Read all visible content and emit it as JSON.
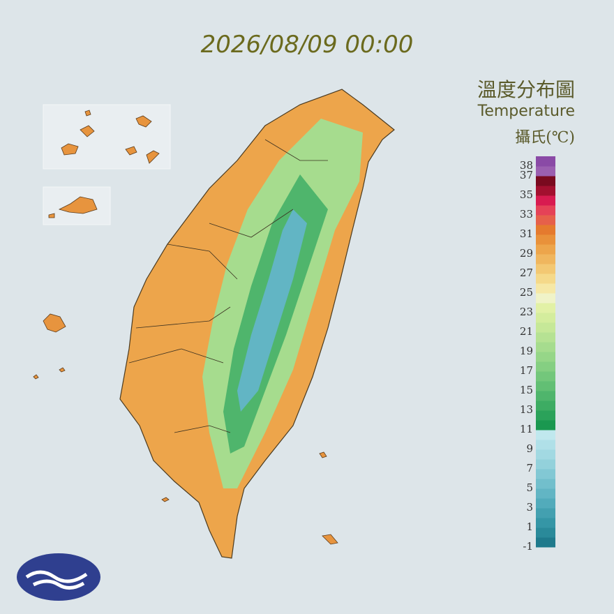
{
  "header": {
    "timestamp": "2026/08/09 00:00",
    "title": "溫度分布圖",
    "subtitle": "Temperature",
    "unit": "攝氏(℃)"
  },
  "legend": {
    "range": [
      -1,
      39
    ],
    "ticks": [
      38,
      37,
      35,
      33,
      31,
      29,
      27,
      25,
      23,
      21,
      19,
      17,
      15,
      13,
      11,
      9,
      7,
      5,
      3,
      1,
      -1
    ],
    "colors": [
      "#1f7a8c",
      "#2a8a9a",
      "#3596a6",
      "#43a0b0",
      "#52abbb",
      "#62b5c4",
      "#72bfcc",
      "#82c8d4",
      "#93d1db",
      "#a2d9e2",
      "#b0e0e8",
      "#c0e8ee",
      "#1a9850",
      "#2ba25a",
      "#3dac63",
      "#4fb56c",
      "#62bf74",
      "#73c77b",
      "#85cf82",
      "#96d688",
      "#a6dc8e",
      "#b6e293",
      "#c6e898",
      "#d4ed9d",
      "#e2f1a6",
      "#f0f3c8",
      "#f6e8a6",
      "#f5d98a",
      "#f3c873",
      "#f0b65e",
      "#eda54b",
      "#e9913a",
      "#e57a2e",
      "#e6604a",
      "#e54257",
      "#d81b50",
      "#a3102f",
      "#7a0a1f",
      "#9b5fb0",
      "#8a4aa6"
    ]
  }
}
